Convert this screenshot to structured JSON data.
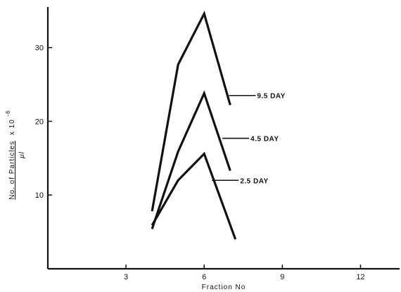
{
  "chart_data": {
    "type": "line",
    "xlabel": "Fraction No",
    "ylabel_main": "No. of Particles",
    "ylabel_factor": "x 10",
    "ylabel_exponent": "-6",
    "ylabel_unit": "μl",
    "xlim": [
      0,
      13.5
    ],
    "ylim": [
      0,
      35.5
    ],
    "xticks": [
      3,
      6,
      9,
      12
    ],
    "yticks": [
      10,
      20,
      30
    ],
    "x_tick_labels": [
      "3",
      "6",
      "9",
      "12"
    ],
    "y_tick_labels": [
      "10",
      "20",
      "30"
    ],
    "grid": false,
    "series": [
      {
        "name": "9.5 DAY",
        "x": [
          4,
          5,
          6,
          7
        ],
        "y": [
          7.8,
          27.7,
          34.6,
          22.2
        ]
      },
      {
        "name": "4.5 DAY",
        "x": [
          4,
          5,
          6,
          7
        ],
        "y": [
          5.4,
          15.9,
          23.8,
          13.3
        ]
      },
      {
        "name": "2.5 DAY",
        "x": [
          4,
          5,
          6,
          7.2
        ],
        "y": [
          5.9,
          12.0,
          15.6,
          4.0
        ]
      }
    ],
    "annotations": [
      {
        "text": "9.5 DAY",
        "series": 0,
        "pointer_x": 6.95,
        "pointer_y": 23.5
      },
      {
        "text": "4.5 DAY",
        "series": 1,
        "pointer_x": 6.7,
        "pointer_y": 17.7
      },
      {
        "text": "2.5 DAY",
        "series": 2,
        "pointer_x": 6.3,
        "pointer_y": 12.0
      }
    ]
  }
}
